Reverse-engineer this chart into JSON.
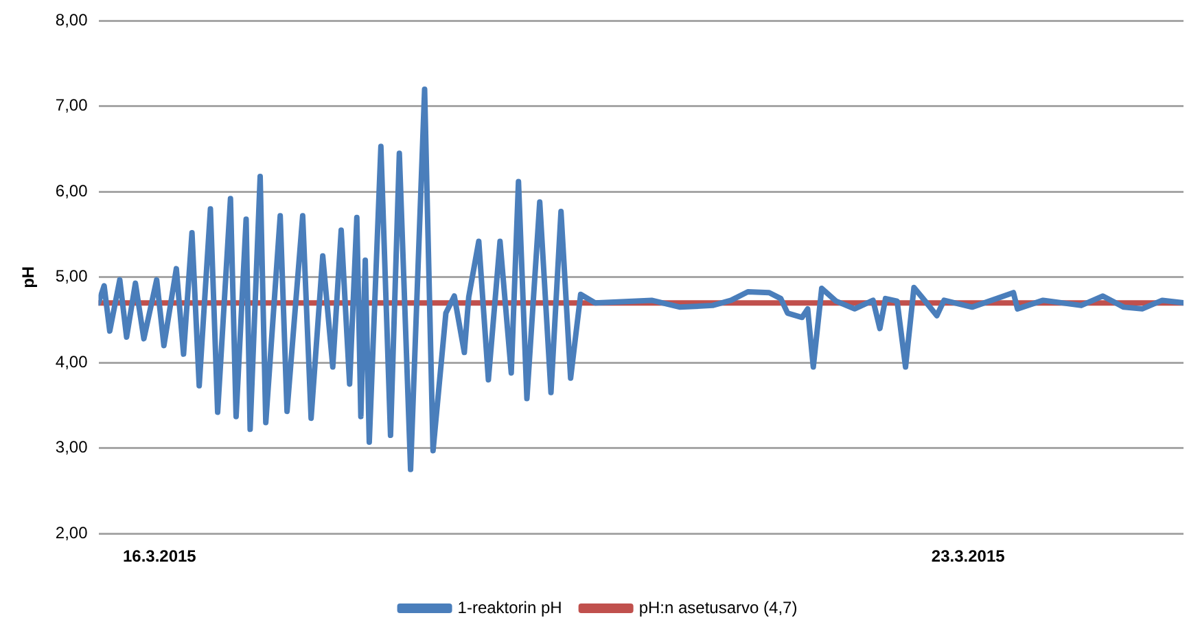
{
  "chart_data": {
    "type": "line",
    "ylabel": "pH",
    "legend": "bottom",
    "grid": "y",
    "marker": "none",
    "line_style": "solid",
    "xlim": [
      "2015-03-15T11:20",
      "2015-03-24T20:45"
    ],
    "xticks": [
      {
        "value": "2015-03-16",
        "label": "16.3.2015"
      },
      {
        "value": "2015-03-23",
        "label": "23.3.2015"
      }
    ],
    "ylim": [
      2,
      8
    ],
    "yticks": [
      {
        "value": 2,
        "label": "2,00"
      },
      {
        "value": 3,
        "label": "3,00"
      },
      {
        "value": 4,
        "label": "4,00"
      },
      {
        "value": 5,
        "label": "5,00"
      },
      {
        "value": 6,
        "label": "6,00"
      },
      {
        "value": 7,
        "label": "7,00"
      },
      {
        "value": 8,
        "label": "8,00"
      }
    ],
    "series": [
      {
        "name": "1-reaktorin pH",
        "color": "#4a7ebb",
        "x": [
          "2015-03-15T11:20",
          "2015-03-15T12:30",
          "2015-03-15T13:40",
          "2015-03-15T15:45",
          "2015-03-15T17:10",
          "2015-03-15T19:00",
          "2015-03-15T20:45",
          "2015-03-15T23:25",
          "2015-03-16T00:55",
          "2015-03-16T03:30",
          "2015-03-16T05:00",
          "2015-03-16T06:45",
          "2015-03-16T08:15",
          "2015-03-16T10:35",
          "2015-03-16T12:05",
          "2015-03-16T14:45",
          "2015-03-16T15:55",
          "2015-03-16T18:00",
          "2015-03-16T18:50",
          "2015-03-16T20:55",
          "2015-03-16T22:05",
          "2015-03-17T01:05",
          "2015-03-17T02:30",
          "2015-03-17T05:45",
          "2015-03-17T07:30",
          "2015-03-17T09:55",
          "2015-03-17T12:00",
          "2015-03-17T13:45",
          "2015-03-17T15:30",
          "2015-03-17T17:00",
          "2015-03-17T17:50",
          "2015-03-17T18:45",
          "2015-03-17T19:35",
          "2015-03-17T22:00",
          "2015-03-18T00:00",
          "2015-03-18T01:50",
          "2015-03-18T04:10",
          "2015-03-18T07:05",
          "2015-03-18T08:50",
          "2015-03-18T11:30",
          "2015-03-18T13:15",
          "2015-03-18T15:20",
          "2015-03-18T16:15",
          "2015-03-18T18:20",
          "2015-03-18T20:20",
          "2015-03-18T22:45",
          "2015-03-19T01:05",
          "2015-03-19T02:35",
          "2015-03-19T04:20",
          "2015-03-19T07:00",
          "2015-03-19T09:20",
          "2015-03-19T11:25",
          "2015-03-19T13:25",
          "2015-03-19T15:30",
          "2015-03-19T18:30",
          "2015-03-20T06:15",
          "2015-03-20T12:10",
          "2015-03-20T18:55",
          "2015-03-20T22:45",
          "2015-03-21T02:15",
          "2015-03-21T06:40",
          "2015-03-21T09:05",
          "2015-03-21T10:30",
          "2015-03-21T13:30",
          "2015-03-21T14:40",
          "2015-03-21T15:50",
          "2015-03-21T17:35",
          "2015-03-21T20:35",
          "2015-03-22T00:25",
          "2015-03-22T04:15",
          "2015-03-22T05:40",
          "2015-03-22T06:50",
          "2015-03-22T09:15",
          "2015-03-22T11:00",
          "2015-03-22T12:45",
          "2015-03-22T15:05",
          "2015-03-22T17:30",
          "2015-03-22T19:00",
          "2015-03-23T00:50",
          "2015-03-23T09:25",
          "2015-03-23T10:15",
          "2015-03-23T15:35",
          "2015-03-23T23:30",
          "2015-03-24T04:00",
          "2015-03-24T08:20",
          "2015-03-24T12:10",
          "2015-03-24T16:20",
          "2015-03-24T20:45"
        ],
        "values": [
          4.7,
          4.9,
          4.37,
          4.97,
          4.3,
          4.93,
          4.28,
          4.97,
          4.2,
          5.1,
          4.1,
          5.52,
          3.73,
          5.8,
          3.42,
          5.92,
          3.37,
          5.68,
          3.22,
          6.18,
          3.3,
          5.72,
          3.43,
          5.72,
          3.35,
          5.25,
          3.95,
          5.55,
          3.75,
          5.7,
          3.37,
          5.2,
          3.07,
          6.53,
          3.15,
          6.45,
          2.75,
          7.2,
          2.97,
          4.58,
          4.78,
          4.12,
          4.77,
          5.42,
          3.8,
          5.42,
          3.88,
          6.12,
          3.58,
          5.88,
          3.65,
          5.77,
          3.82,
          4.8,
          4.7,
          4.73,
          4.65,
          4.67,
          4.73,
          4.83,
          4.82,
          4.75,
          4.58,
          4.53,
          4.63,
          3.95,
          4.87,
          4.72,
          4.63,
          4.73,
          4.4,
          4.75,
          4.72,
          3.95,
          4.88,
          4.72,
          4.55,
          4.73,
          4.65,
          4.82,
          4.63,
          4.73,
          4.67,
          4.78,
          4.65,
          4.63,
          4.73,
          4.7
        ]
      },
      {
        "name": "pH:n asetusarvo (4,7)",
        "color": "#c0504d",
        "x": [
          "2015-03-15T11:20",
          "2015-03-24T20:45"
        ],
        "values": [
          4.7,
          4.7
        ]
      }
    ]
  }
}
